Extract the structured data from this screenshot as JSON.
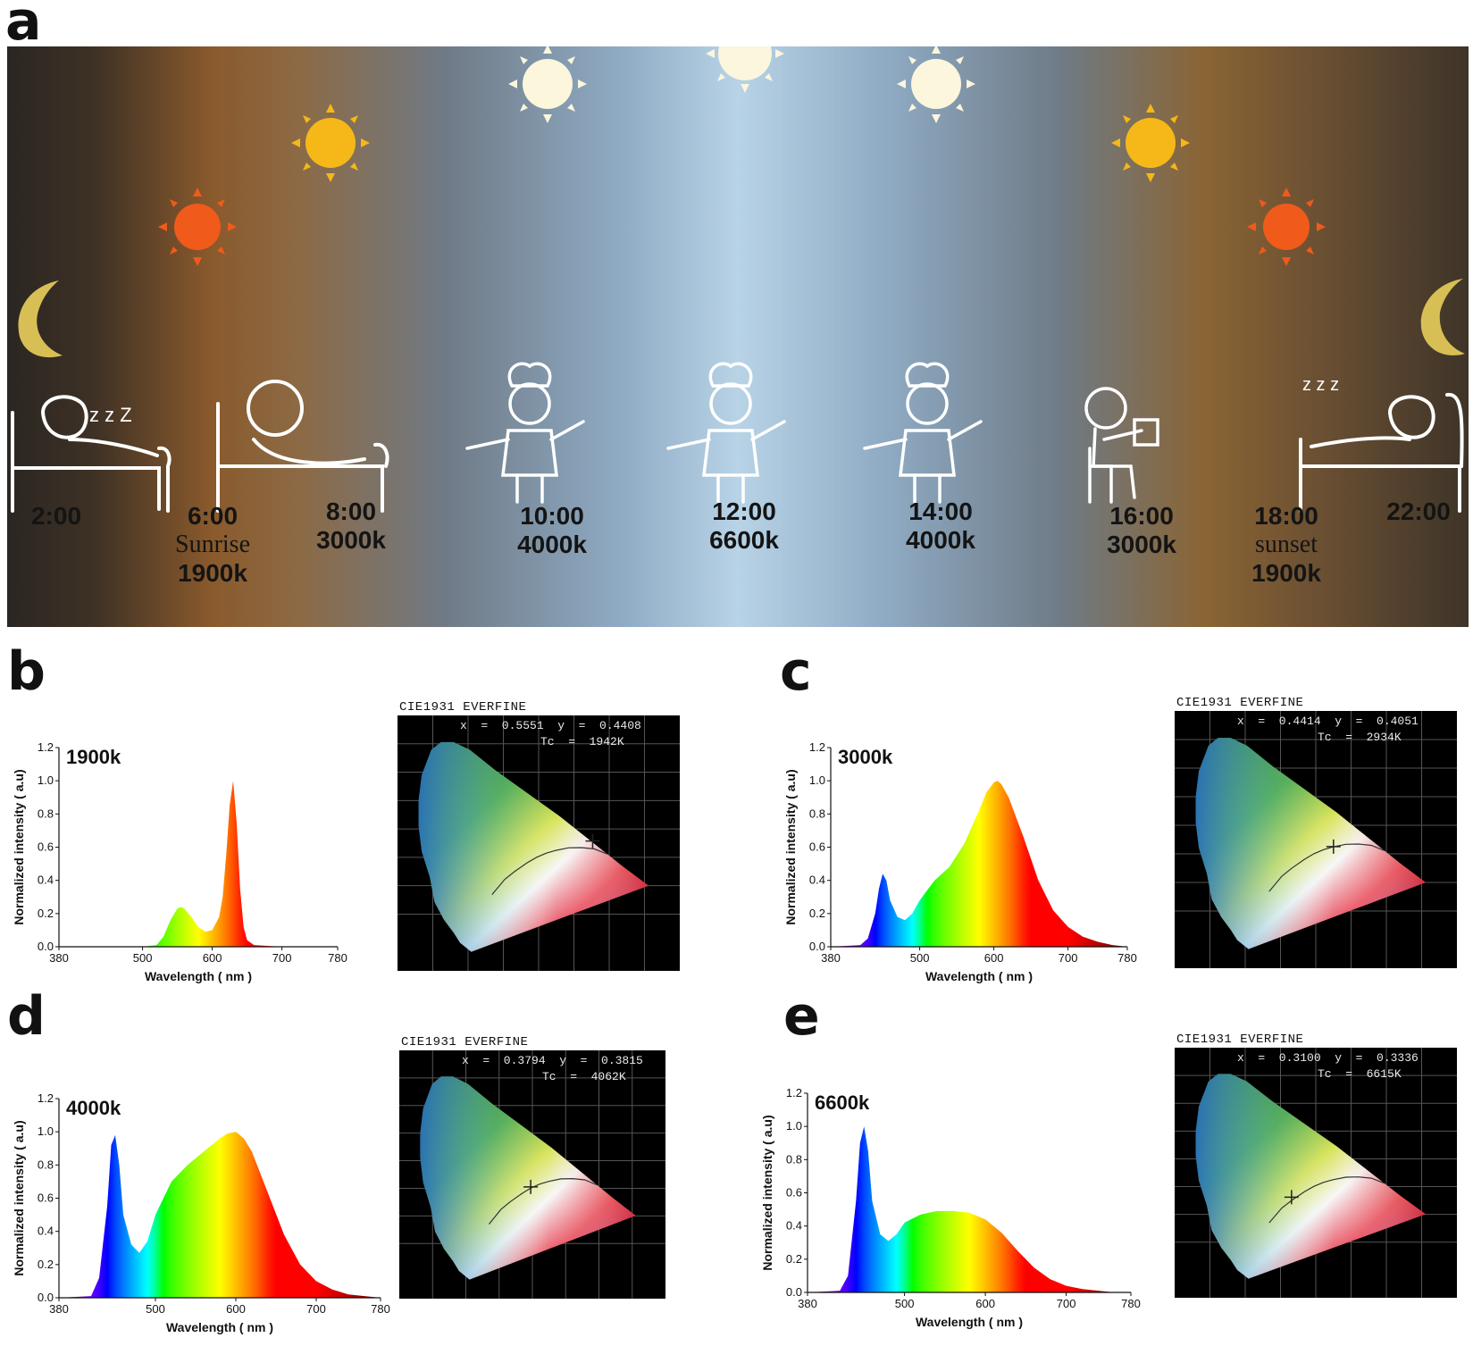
{
  "panels": {
    "a": "a",
    "b": "b",
    "c": "c",
    "d": "d",
    "e": "e"
  },
  "timeline": [
    {
      "time": "2:00",
      "label": "",
      "cct": ""
    },
    {
      "time": "6:00",
      "label": "Sunrise",
      "cct": "1900k"
    },
    {
      "time": "8:00",
      "label": "",
      "cct": "3000k"
    },
    {
      "time": "10:00",
      "label": "",
      "cct": "4000k"
    },
    {
      "time": "12:00",
      "label": "",
      "cct": "6600k"
    },
    {
      "time": "14:00",
      "label": "",
      "cct": "4000k"
    },
    {
      "time": "16:00",
      "label": "",
      "cct": "3000k"
    },
    {
      "time": "18:00",
      "label": "sunset",
      "cct": "1900k"
    },
    {
      "time": "22:00",
      "label": "",
      "cct": ""
    }
  ],
  "sun_colors": {
    "red": "#f05a1a",
    "orange": "#f6b818",
    "white": "#fbf6dc"
  },
  "moon_color": "#d8bf55",
  "chart_data": [
    {
      "type": "area",
      "panel": "b",
      "annotation": "1900k",
      "xlabel": "Wavelength ( nm )",
      "ylabel": "Normalized intensity ( a.u)",
      "xlim": [
        380,
        780
      ],
      "ylim": [
        0,
        1.2
      ],
      "xticks": [
        380,
        500,
        600,
        700,
        780
      ],
      "yticks": [
        0.0,
        0.2,
        0.4,
        0.6,
        0.8,
        1.0,
        1.2
      ],
      "x": [
        380,
        500,
        520,
        530,
        540,
        550,
        555,
        560,
        570,
        580,
        590,
        600,
        610,
        615,
        620,
        625,
        630,
        635,
        640,
        645,
        650,
        660,
        700,
        780
      ],
      "y": [
        0,
        0,
        0.01,
        0.06,
        0.16,
        0.23,
        0.24,
        0.23,
        0.18,
        0.12,
        0.09,
        0.1,
        0.18,
        0.3,
        0.55,
        0.85,
        1.0,
        0.75,
        0.35,
        0.12,
        0.04,
        0.01,
        0,
        0
      ]
    },
    {
      "type": "area",
      "panel": "c",
      "annotation": "3000k",
      "xlabel": "Wavelength ( nm )",
      "ylabel": "Normalized intensity ( a.u)",
      "xlim": [
        380,
        780
      ],
      "ylim": [
        0,
        1.2
      ],
      "xticks": [
        380,
        500,
        600,
        700,
        780
      ],
      "yticks": [
        0.0,
        0.2,
        0.4,
        0.6,
        0.8,
        1.0,
        1.2
      ],
      "x": [
        380,
        420,
        430,
        440,
        445,
        450,
        455,
        460,
        470,
        480,
        490,
        500,
        520,
        540,
        560,
        580,
        590,
        600,
        605,
        610,
        620,
        640,
        660,
        680,
        700,
        720,
        740,
        760,
        780
      ],
      "y": [
        0,
        0.01,
        0.05,
        0.2,
        0.35,
        0.44,
        0.4,
        0.28,
        0.18,
        0.16,
        0.2,
        0.28,
        0.4,
        0.48,
        0.62,
        0.82,
        0.93,
        0.99,
        1.0,
        0.98,
        0.9,
        0.66,
        0.4,
        0.22,
        0.12,
        0.06,
        0.03,
        0.01,
        0
      ]
    },
    {
      "type": "area",
      "panel": "d",
      "annotation": "4000k",
      "xlabel": "Wavelength ( nm )",
      "ylabel": "Normalized intensity ( a.u)",
      "xlim": [
        380,
        780
      ],
      "ylim": [
        0,
        1.2
      ],
      "xticks": [
        380,
        500,
        600,
        700,
        780
      ],
      "yticks": [
        0.0,
        0.2,
        0.4,
        0.6,
        0.8,
        1.0,
        1.2
      ],
      "x": [
        380,
        420,
        430,
        440,
        445,
        450,
        455,
        460,
        470,
        480,
        490,
        500,
        520,
        540,
        560,
        580,
        590,
        600,
        610,
        620,
        640,
        660,
        680,
        700,
        720,
        740,
        760,
        780
      ],
      "y": [
        0,
        0.01,
        0.12,
        0.55,
        0.92,
        0.98,
        0.8,
        0.5,
        0.32,
        0.27,
        0.34,
        0.5,
        0.7,
        0.8,
        0.88,
        0.96,
        0.99,
        1.0,
        0.96,
        0.88,
        0.63,
        0.38,
        0.2,
        0.1,
        0.05,
        0.02,
        0.01,
        0
      ]
    },
    {
      "type": "area",
      "panel": "e",
      "annotation": "6600k",
      "xlabel": "Wavelength ( nm )",
      "ylabel": "Normalized intensity ( a.u)",
      "xlim": [
        380,
        780
      ],
      "ylim": [
        0,
        1.2
      ],
      "xticks": [
        380,
        500,
        600,
        700,
        780
      ],
      "yticks": [
        0.0,
        0.2,
        0.4,
        0.6,
        0.8,
        1.0,
        1.2
      ],
      "x": [
        380,
        420,
        430,
        440,
        445,
        450,
        455,
        460,
        470,
        480,
        490,
        500,
        520,
        540,
        560,
        580,
        600,
        620,
        640,
        660,
        680,
        700,
        720,
        740,
        760,
        780
      ],
      "y": [
        0,
        0.01,
        0.1,
        0.55,
        0.9,
        1.0,
        0.85,
        0.55,
        0.35,
        0.31,
        0.35,
        0.42,
        0.47,
        0.49,
        0.49,
        0.48,
        0.44,
        0.36,
        0.25,
        0.15,
        0.08,
        0.04,
        0.02,
        0.01,
        0,
        0
      ]
    }
  ],
  "cie": [
    {
      "panel": "b",
      "title": "CIE1931  EVERFINE",
      "xy": "x  =  0.5551  y  =  0.4408",
      "tc": "Tc  =  1942K",
      "mark": [
        0.5551,
        0.4408
      ]
    },
    {
      "panel": "c",
      "title": "CIE1931  EVERFINE",
      "xy": "x  =  0.4414  y  =  0.4051",
      "tc": "Tc  =  2934K",
      "mark": [
        0.4414,
        0.4051
      ]
    },
    {
      "panel": "d",
      "title": "CIE1931  EVERFINE",
      "xy": "x  =  0.3794  y  =  0.3815",
      "tc": "Tc  =  4062K",
      "mark": [
        0.3794,
        0.3815
      ]
    },
    {
      "panel": "e",
      "title": "CIE1931  EVERFINE",
      "xy": "x  =  0.3100  y  =  0.3336",
      "tc": "Tc  =  6615K",
      "mark": [
        0.31,
        0.3336
      ]
    }
  ]
}
